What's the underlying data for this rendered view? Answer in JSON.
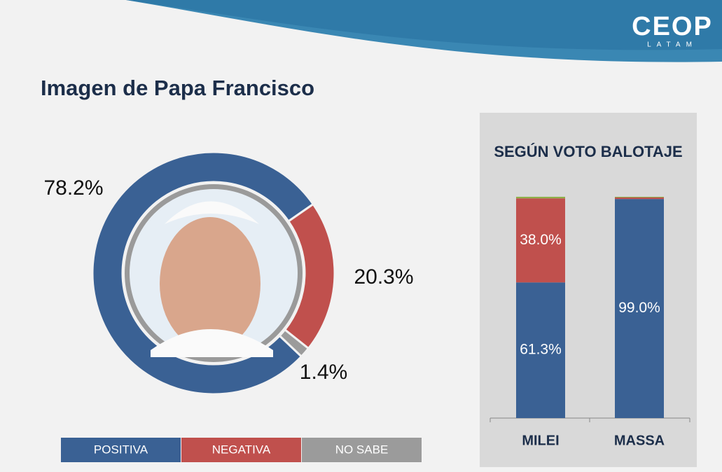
{
  "logo": {
    "name": "CEOP",
    "sub": "LATAM"
  },
  "chart_data": [
    {
      "type": "donut",
      "title": "Imagen de Papa Francisco",
      "categories": [
        "POSITIVA",
        "NEGATIVA",
        "NO SABE"
      ],
      "values": [
        78.2,
        20.3,
        1.4
      ],
      "value_labels": [
        "78.2%",
        "20.3%",
        "1.4%"
      ],
      "colors": [
        "#3a6194",
        "#c0504d",
        "#9b9b9b"
      ]
    },
    {
      "type": "stacked-bar",
      "title": "SEGÚN VOTO BALOTAJE",
      "categories": [
        "MILEI",
        "MASSA"
      ],
      "series": [
        {
          "color": "#3a6194",
          "values": [
            61.3,
            99.0
          ],
          "value_labels": [
            "61.3%",
            "99.0%"
          ]
        },
        {
          "color": "#c0504d",
          "values": [
            38.0,
            0.7
          ],
          "value_labels": [
            "38.0%",
            null
          ]
        },
        {
          "color": "#8fb04a",
          "values": [
            0.7,
            0.3
          ],
          "value_labels": [
            null,
            null
          ]
        }
      ]
    }
  ]
}
